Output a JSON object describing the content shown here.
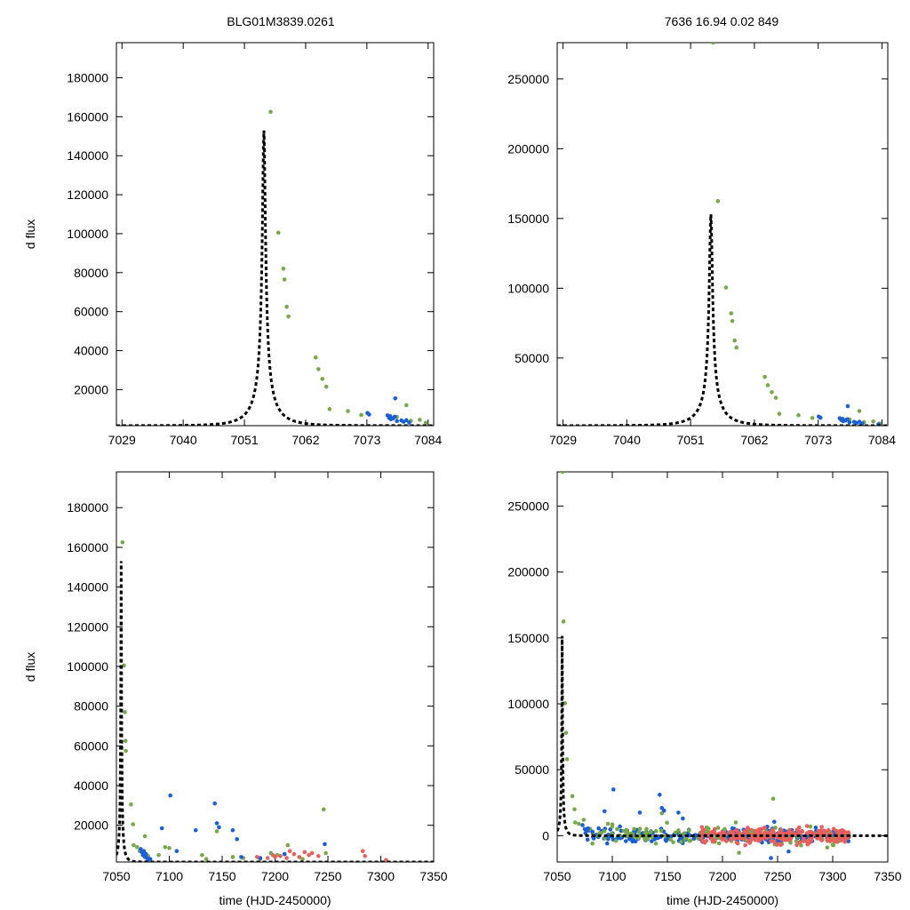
{
  "header": {
    "left_title": "BLG01M3839.0261",
    "right_title": "7636  16.94  0.02  849"
  },
  "colors": {
    "series_green": "#77a84a",
    "series_blue": "#1a5fd6",
    "series_red": "#e8605e",
    "model_line": "#000000"
  },
  "chart_data": [
    {
      "id": "top-left",
      "type": "scatter",
      "xlabel": "",
      "ylabel": "d flux",
      "xlim": [
        7028,
        7085
      ],
      "ylim": [
        1500,
        198000
      ],
      "xticks": [
        7029,
        7040,
        7051,
        7062,
        7073,
        7084
      ],
      "yticks": [
        20000,
        40000,
        60000,
        80000,
        100000,
        120000,
        140000,
        160000,
        180000
      ],
      "model": {
        "t0": 7054.5,
        "u0": 0.052,
        "tE": 5.0,
        "base": 1500,
        "amp": 151500
      },
      "series": [
        {
          "color": "green",
          "points": [
            [
              7055.7,
              162500
            ],
            [
              7057.1,
              100500
            ],
            [
              7058.0,
              82000
            ],
            [
              7058.2,
              76500
            ],
            [
              7058.6,
              62500
            ],
            [
              7058.9,
              57500
            ],
            [
              7063.8,
              36500
            ],
            [
              7064.3,
              30500
            ],
            [
              7065.0,
              25500
            ],
            [
              7065.7,
              21500
            ],
            [
              7066.3,
              10000
            ],
            [
              7069.6,
              9000
            ],
            [
              7072.0,
              7000
            ],
            [
              7077.2,
              6500
            ],
            [
              7078.4,
              6000
            ],
            [
              7080.1,
              12000
            ],
            [
              7080.9,
              4000
            ],
            [
              7082.5,
              4500
            ],
            [
              7083.6,
              3000
            ]
          ]
        },
        {
          "color": "blue",
          "points": [
            [
              7073.1,
              8000
            ],
            [
              7073.4,
              7200
            ],
            [
              7076.7,
              6800
            ],
            [
              7077.0,
              5500
            ],
            [
              7077.2,
              6200
            ],
            [
              7077.3,
              4800
            ],
            [
              7077.7,
              5200
            ],
            [
              7078.0,
              6100
            ],
            [
              7078.1,
              15500
            ],
            [
              7078.4,
              3900
            ],
            [
              7079.2,
              4200
            ],
            [
              7079.6,
              3500
            ],
            [
              7080.1,
              4300
            ],
            [
              7080.6,
              3100
            ]
          ]
        }
      ]
    },
    {
      "id": "top-right",
      "type": "scatter",
      "xlabel": "",
      "ylabel": "",
      "xlim": [
        7028,
        7085
      ],
      "ylim": [
        1500,
        276000
      ],
      "xticks": [
        7029,
        7040,
        7051,
        7062,
        7073,
        7084
      ],
      "yticks": [
        50000,
        100000,
        150000,
        200000,
        250000
      ],
      "model": {
        "t0": 7054.5,
        "u0": 0.052,
        "tE": 5.0,
        "base": 1500,
        "amp": 151500
      },
      "series": [
        {
          "color": "green",
          "points": [
            [
              7054.9,
              276000
            ],
            [
              7055.7,
              162500
            ],
            [
              7057.1,
              100500
            ],
            [
              7058.0,
              82000
            ],
            [
              7058.2,
              76500
            ],
            [
              7058.6,
              62500
            ],
            [
              7058.9,
              57500
            ],
            [
              7063.8,
              36500
            ],
            [
              7064.3,
              30500
            ],
            [
              7065.0,
              25500
            ],
            [
              7065.7,
              21500
            ],
            [
              7066.3,
              10000
            ],
            [
              7069.6,
              9000
            ],
            [
              7072.0,
              7000
            ],
            [
              7077.2,
              6500
            ],
            [
              7078.4,
              6000
            ],
            [
              7080.1,
              12000
            ],
            [
              7080.9,
              4000
            ],
            [
              7082.5,
              4500
            ],
            [
              7083.6,
              3000
            ]
          ]
        },
        {
          "color": "blue",
          "points": [
            [
              7073.1,
              8000
            ],
            [
              7073.4,
              7200
            ],
            [
              7076.7,
              6800
            ],
            [
              7077.0,
              5500
            ],
            [
              7077.2,
              6200
            ],
            [
              7077.3,
              4800
            ],
            [
              7077.7,
              5200
            ],
            [
              7078.0,
              6100
            ],
            [
              7078.1,
              15500
            ],
            [
              7078.4,
              3900
            ],
            [
              7079.2,
              4200
            ],
            [
              7079.6,
              3500
            ],
            [
              7080.1,
              4300
            ],
            [
              7080.6,
              3100
            ],
            [
              7083.4,
              2500
            ]
          ]
        }
      ]
    },
    {
      "id": "bottom-left",
      "type": "scatter",
      "xlabel": "time (HJD-2450000)",
      "ylabel": "d flux",
      "xlim": [
        7050,
        7350
      ],
      "ylim": [
        1500,
        198000
      ],
      "xticks": [
        7050,
        7100,
        7150,
        7200,
        7250,
        7300,
        7350
      ],
      "yticks": [
        20000,
        40000,
        60000,
        80000,
        100000,
        120000,
        140000,
        160000,
        180000
      ],
      "model": {
        "t0": 7054.5,
        "u0": 0.052,
        "tE": 5.0,
        "base": 1500,
        "amp": 151500
      },
      "series": [
        {
          "color": "green",
          "points": [
            [
              7055.7,
              162500
            ],
            [
              7057.1,
              100500
            ],
            [
              7058.0,
              77000
            ],
            [
              7058.6,
              62500
            ],
            [
              7058.9,
              57500
            ],
            [
              7063.8,
              30500
            ],
            [
              7065.7,
              20500
            ],
            [
              7066.3,
              10000
            ],
            [
              7069.6,
              9000
            ],
            [
              7072,
              7000
            ],
            [
              7077,
              14500
            ],
            [
              7080,
              4500
            ],
            [
              7082,
              3000
            ],
            [
              7090,
              5000
            ],
            [
              7096,
              9000
            ],
            [
              7100,
              8500
            ],
            [
              7131,
              5000
            ],
            [
              7135,
              3000
            ],
            [
              7145,
              17000
            ],
            [
              7160,
              4000
            ],
            [
              7170,
              3500
            ],
            [
              7186,
              3000
            ],
            [
              7196,
              6000
            ],
            [
              7202,
              5000
            ],
            [
              7212,
              10000
            ],
            [
              7226,
              3000
            ],
            [
              7246,
              28000
            ],
            [
              7248,
              6000
            ]
          ]
        },
        {
          "color": "blue",
          "points": [
            [
              7073,
              8000
            ],
            [
              7074,
              6500
            ],
            [
              7075,
              5000
            ],
            [
              7076,
              7000
            ],
            [
              7077,
              4000
            ],
            [
              7078,
              5500
            ],
            [
              7079,
              3500
            ],
            [
              7080,
              2500
            ],
            [
              7082,
              3000
            ],
            [
              7093,
              18500
            ],
            [
              7101,
              35000
            ],
            [
              7107,
              7000
            ],
            [
              7125,
              17500
            ],
            [
              7143,
              31000
            ],
            [
              7145,
              21000
            ],
            [
              7147,
              19000
            ],
            [
              7160,
              17500
            ],
            [
              7164,
              13000
            ],
            [
              7168,
              4000
            ],
            [
              7186,
              3500
            ],
            [
              7209,
              5500
            ],
            [
              7247,
              10500
            ]
          ]
        },
        {
          "color": "red",
          "points": [
            [
              7183,
              4000
            ],
            [
              7193,
              3500
            ],
            [
              7198,
              5000
            ],
            [
              7200,
              4000
            ],
            [
              7205,
              4500
            ],
            [
              7211,
              3500
            ],
            [
              7214,
              7000
            ],
            [
              7218,
              5500
            ],
            [
              7223,
              4000
            ],
            [
              7228,
              6500
            ],
            [
              7232,
              5000
            ],
            [
              7235,
              6000
            ],
            [
              7241,
              4500
            ],
            [
              7283,
              7000
            ],
            [
              7285,
              4500
            ],
            [
              7305,
              2500
            ]
          ]
        }
      ]
    },
    {
      "id": "bottom-right",
      "type": "scatter",
      "xlabel": "time (HJD-2450000)",
      "ylabel": "",
      "xlim": [
        7050,
        7350
      ],
      "ylim": [
        -20000,
        276000
      ],
      "xticks": [
        7050,
        7100,
        7150,
        7200,
        7250,
        7300,
        7350
      ],
      "yticks": [
        0,
        50000,
        100000,
        150000,
        200000,
        250000
      ],
      "model": {
        "t0": 7054.5,
        "u0": 0.052,
        "tE": 5.0,
        "base": 0,
        "amp": 151500
      },
      "series": [
        {
          "color": "green",
          "points": [
            [
              7054.9,
              276000
            ],
            [
              7055.7,
              162500
            ],
            [
              7057.1,
              100500
            ],
            [
              7058,
              78000
            ],
            [
              7058.9,
              58000
            ],
            [
              7063.8,
              30000
            ],
            [
              7065.7,
              20000
            ],
            [
              7066.3,
              10000
            ],
            [
              7069.6,
              9000
            ],
            [
              7074,
              12000
            ],
            [
              7080,
              5000
            ],
            [
              7090,
              2000
            ],
            [
              7096,
              9000
            ],
            [
              7100,
              8500
            ],
            [
              7131,
              5000
            ],
            [
              7135,
              3000
            ],
            [
              7145,
              17000
            ],
            [
              7160,
              4000
            ],
            [
              7170,
              -4000
            ],
            [
              7186,
              3000
            ],
            [
              7196,
              6000
            ],
            [
              7202,
              5000
            ],
            [
              7212,
              10000
            ],
            [
              7215,
              -13000
            ],
            [
              7226,
              3000
            ],
            [
              7246,
              28000
            ],
            [
              7248,
              6000
            ],
            [
              7295,
              -9000
            ],
            [
              7300,
              -7000
            ]
          ]
        },
        {
          "color": "blue",
          "points": [
            [
              7073,
              8000
            ],
            [
              7075,
              5000
            ],
            [
              7078,
              5500
            ],
            [
              7082,
              3000
            ],
            [
              7093,
              18500
            ],
            [
              7101,
              35000
            ],
            [
              7107,
              7000
            ],
            [
              7125,
              17500
            ],
            [
              7143,
              31000
            ],
            [
              7145,
              21000
            ],
            [
              7147,
              19000
            ],
            [
              7160,
              17500
            ],
            [
              7164,
              13000
            ],
            [
              7209,
              5500
            ],
            [
              7247,
              10500
            ],
            [
              7244,
              -17000
            ],
            [
              7260,
              -12000
            ]
          ]
        },
        {
          "color": "red",
          "points": [
            [
              7253,
              -7000
            ],
            [
              7270,
              -5000
            ],
            [
              7290,
              -3500
            ]
          ]
        }
      ],
      "dense_bands": [
        {
          "color": "blue",
          "x_range": [
            7075,
            7315
          ],
          "y_center": 0,
          "y_spread": 2500,
          "count": 260
        },
        {
          "color": "green",
          "x_range": [
            7080,
            7310
          ],
          "y_center": 0,
          "y_spread": 3500,
          "count": 120
        },
        {
          "color": "red",
          "x_range": [
            7180,
            7315
          ],
          "y_center": 0,
          "y_spread": 3000,
          "count": 260
        }
      ]
    }
  ]
}
